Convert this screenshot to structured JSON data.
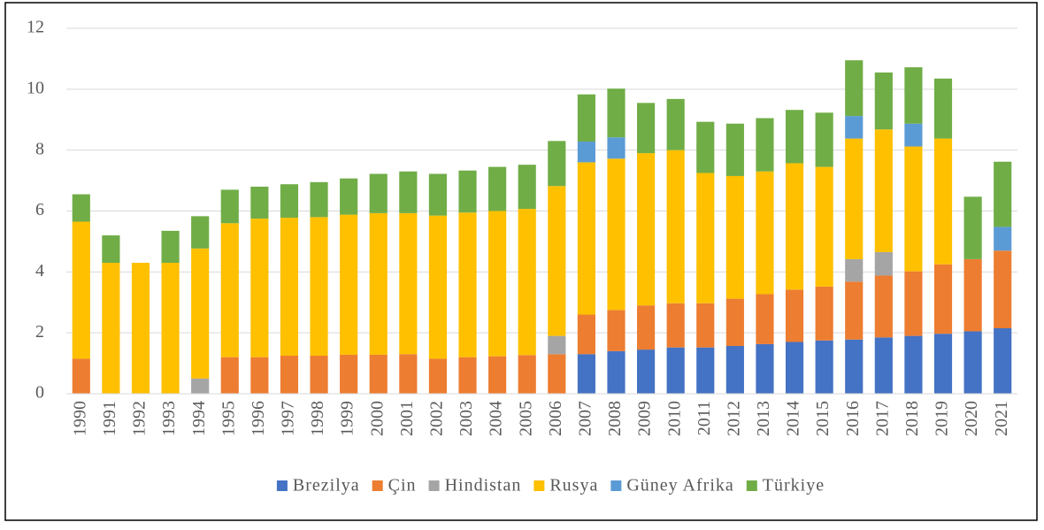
{
  "chart_data": {
    "type": "bar",
    "stacked": true,
    "categories": [
      "1990",
      "1991",
      "1992",
      "1993",
      "1994",
      "1995",
      "1996",
      "1997",
      "1998",
      "1999",
      "2000",
      "2001",
      "2002",
      "2003",
      "2004",
      "2005",
      "2006",
      "2007",
      "2008",
      "2009",
      "2010",
      "2011",
      "2012",
      "2013",
      "2014",
      "2015",
      "2016",
      "2017",
      "2018",
      "2019",
      "2020",
      "2021"
    ],
    "series": [
      {
        "name": "Brezilya",
        "color": "#4472c4",
        "values": [
          0,
          0,
          0,
          0,
          0,
          0,
          0,
          0,
          0,
          0,
          0,
          0,
          0,
          0,
          0,
          0,
          0,
          1.3,
          1.4,
          1.45,
          1.52,
          1.52,
          1.57,
          1.63,
          1.7,
          1.75,
          1.78,
          1.85,
          1.9,
          1.97,
          2.05,
          2.15
        ]
      },
      {
        "name": "Çin",
        "color": "#ed7d31",
        "values": [
          1.15,
          0,
          0,
          0,
          0,
          1.2,
          1.2,
          1.25,
          1.25,
          1.28,
          1.28,
          1.3,
          1.15,
          1.2,
          1.23,
          1.27,
          1.3,
          1.3,
          1.35,
          1.45,
          1.45,
          1.45,
          1.55,
          1.64,
          1.72,
          1.77,
          1.9,
          2.03,
          2.12,
          2.28,
          2.37,
          2.55
        ]
      },
      {
        "name": "Hindistan",
        "color": "#a5a5a5",
        "values": [
          0,
          0,
          0,
          0,
          0.5,
          0,
          0,
          0,
          0,
          0,
          0,
          0,
          0,
          0,
          0,
          0,
          0.6,
          0,
          0,
          0,
          0,
          0,
          0,
          0,
          0,
          0,
          0.74,
          0.77,
          0,
          0,
          0,
          0
        ]
      },
      {
        "name": "Rusya",
        "color": "#ffc000",
        "values": [
          4.5,
          4.3,
          4.3,
          4.3,
          4.27,
          4.4,
          4.55,
          4.53,
          4.55,
          4.6,
          4.65,
          4.63,
          4.7,
          4.75,
          4.77,
          4.8,
          4.92,
          5.0,
          4.97,
          5.0,
          5.03,
          4.28,
          4.03,
          4.03,
          4.15,
          3.93,
          3.96,
          4.03,
          4.1,
          4.13,
          0,
          0
        ]
      },
      {
        "name": "Güney Afrika",
        "color": "#5b9bd5",
        "values": [
          0,
          0,
          0,
          0,
          0,
          0,
          0,
          0,
          0,
          0,
          0,
          0,
          0,
          0,
          0,
          0,
          0,
          0.68,
          0.7,
          0,
          0,
          0,
          0,
          0,
          0,
          0,
          0.74,
          0,
          0.75,
          0,
          0,
          0.78
        ]
      },
      {
        "name": "Türkiye",
        "color": "#70ad47",
        "values": [
          0.9,
          0.9,
          0,
          1.05,
          1.06,
          1.1,
          1.05,
          1.1,
          1.15,
          1.19,
          1.29,
          1.37,
          1.37,
          1.38,
          1.45,
          1.45,
          1.48,
          1.55,
          1.6,
          1.65,
          1.68,
          1.68,
          1.72,
          1.75,
          1.75,
          1.78,
          1.83,
          1.87,
          1.85,
          1.97,
          2.05,
          2.14
        ]
      }
    ],
    "ylim": [
      0,
      12
    ],
    "yticks": [
      0,
      2,
      4,
      6,
      8,
      10,
      12
    ],
    "grid": true,
    "legend": "bottom"
  }
}
